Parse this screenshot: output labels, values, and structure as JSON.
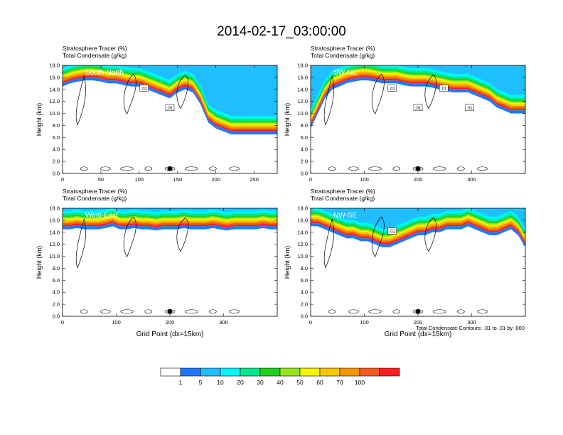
{
  "title": "2014-02-17_03:00:00",
  "colorbar": {
    "colors": [
      "#ffffff",
      "#1e78ff",
      "#1ebeff",
      "#00f5f5",
      "#00e68c",
      "#1ed21e",
      "#96e61e",
      "#f5f500",
      "#f5c800",
      "#f59600",
      "#f55a1e",
      "#ff1e1e"
    ],
    "labels": [
      "1",
      "5",
      "10",
      "20",
      "30",
      "40",
      "50",
      "60",
      "70",
      "100"
    ]
  },
  "contour_note": "Total Condensate Contours: .01 to .01 by .000",
  "chart_data": [
    {
      "type": "heatmap",
      "section": "South-North",
      "subtitle_lines": [
        "Stratosphere Tracer   (%)",
        "Total Condensate   (g/kg)"
      ],
      "ylabel": "Height (km)",
      "xlabel": "",
      "xlim": [
        0,
        280
      ],
      "ylim": [
        0,
        18
      ],
      "xticks": [
        "0",
        "50",
        "100",
        "150",
        "200",
        "250"
      ],
      "yticks": [
        "0.0",
        "2.0",
        "4.0",
        "6.0",
        "8.0",
        "10.0",
        "12.0",
        "14.0",
        "16.0",
        "18.0"
      ],
      "contour_labels": [
        ".01",
        ".01"
      ],
      "marker_x": 140,
      "tracer_base_km": [
        15.0,
        15.5,
        15.8,
        16.0,
        16.0,
        15.8,
        15.5,
        15.5,
        15.2,
        15.0,
        15.0,
        14.5,
        14.0,
        13.5,
        13.0,
        14.0,
        14.5,
        14.0,
        12.0,
        9.0,
        8.0,
        7.5,
        7.0,
        7.0,
        7.0,
        7.0,
        7.0,
        7.0,
        7.0
      ]
    },
    {
      "type": "heatmap",
      "section": "SW-NE",
      "subtitle_lines": [
        "Stratosphere Tracer   (%)",
        "Total Condensate   (g/kg)"
      ],
      "ylabel": "Height (km)",
      "xlabel": "",
      "xlim": [
        0,
        400
      ],
      "ylim": [
        0,
        18
      ],
      "xticks": [
        "0",
        "100",
        "200",
        "300"
      ],
      "yticks": [
        "0.0",
        "2.0",
        "4.0",
        "6.0",
        "8.0",
        "10.0",
        "12.0",
        "14.0",
        "16.0",
        "18.0"
      ],
      "contour_labels": [
        ".01",
        ".01",
        ".01",
        ".01"
      ],
      "marker_x": 200,
      "tracer_base_km": [
        8.0,
        10.5,
        13.0,
        14.5,
        15.0,
        15.5,
        15.8,
        16.0,
        16.0,
        15.8,
        15.5,
        15.5,
        15.5,
        15.2,
        15.0,
        15.0,
        15.0,
        14.8,
        14.5,
        14.2,
        14.0,
        14.0,
        14.0,
        13.5,
        13.0,
        12.5,
        11.5,
        11.0,
        10.5,
        10.5,
        10.5
      ]
    },
    {
      "type": "heatmap",
      "section": "West-East",
      "subtitle_lines": [
        "Stratosphere Tracer   (%)",
        "Total Condensate   (g/kg)"
      ],
      "ylabel": "Height (km)",
      "xlabel": "Grid Point (dx=15km)",
      "xlim": [
        0,
        400
      ],
      "ylim": [
        0,
        18
      ],
      "xticks": [
        "0",
        "100",
        "200",
        "300"
      ],
      "yticks": [
        "0.0",
        "2.0",
        "4.0",
        "6.0",
        "8.0",
        "10.0",
        "12.0",
        "14.0",
        "16.0",
        "18.0"
      ],
      "contour_labels": [],
      "marker_x": 200,
      "tracer_base_km": [
        15.0,
        15.0,
        15.2,
        15.0,
        15.0,
        15.0,
        15.2,
        15.5,
        15.0,
        15.0,
        15.2,
        15.0,
        15.0,
        14.8,
        15.0,
        15.0,
        15.0,
        15.2,
        15.0,
        15.0,
        15.0,
        15.2,
        15.0,
        14.8,
        15.0,
        15.0,
        15.0,
        15.0,
        15.2,
        15.0,
        15.0
      ]
    },
    {
      "type": "heatmap",
      "section": "NW-SE",
      "subtitle_lines": [
        "Stratosphere Tracer   (%)",
        "Total Condensate   (g/kg)"
      ],
      "ylabel": "Height (km)",
      "xlabel": "Grid Point (dx=15km)",
      "xlim": [
        0,
        400
      ],
      "ylim": [
        0,
        18
      ],
      "xticks": [
        "0",
        "100",
        "200",
        "300"
      ],
      "yticks": [
        "0.0",
        "2.0",
        "4.0",
        "6.0",
        "8.0",
        "10.0",
        "12.0",
        "14.0",
        "16.0",
        "18.0"
      ],
      "contour_labels": [
        ".01"
      ],
      "marker_x": 200,
      "tracer_base_km": [
        15.5,
        15.5,
        15.0,
        14.5,
        14.0,
        13.5,
        13.5,
        13.0,
        13.0,
        12.5,
        12.0,
        12.0,
        12.5,
        13.0,
        13.5,
        14.0,
        14.0,
        14.5,
        14.5,
        15.0,
        15.0,
        15.0,
        15.5,
        15.0,
        14.5,
        14.0,
        14.0,
        14.5,
        15.0,
        14.0,
        12.0
      ]
    }
  ]
}
